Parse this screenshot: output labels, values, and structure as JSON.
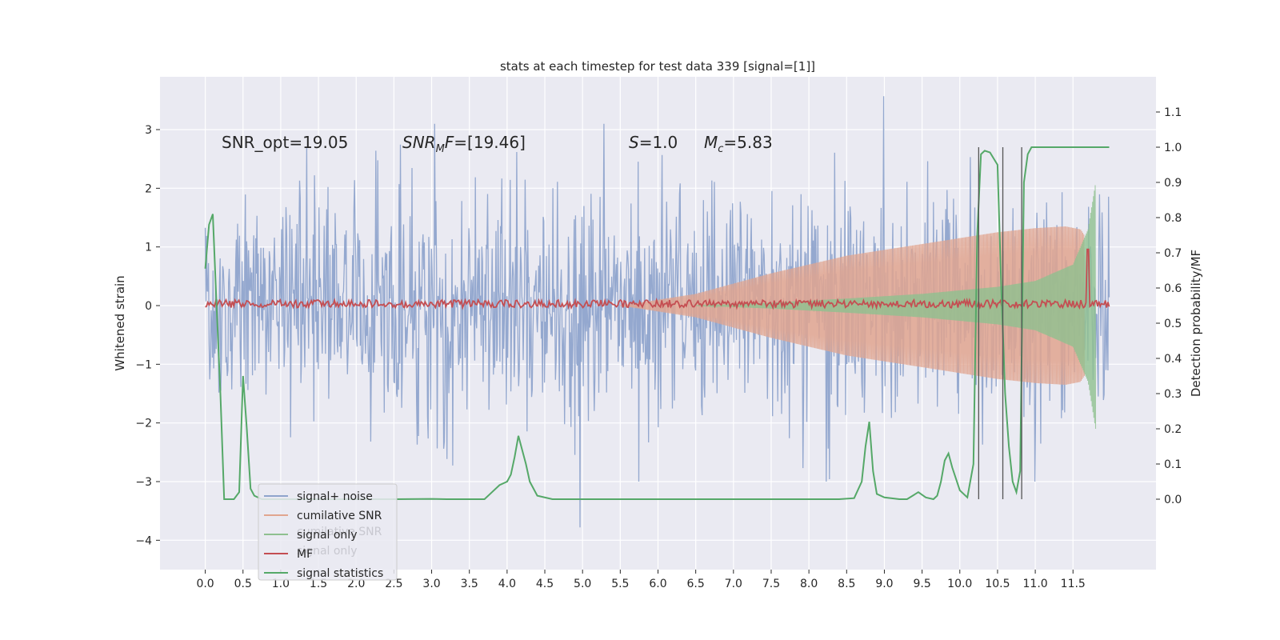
{
  "chart_data": {
    "type": "line",
    "title": "stats at each timestep for test data 339 [signal=[1]]",
    "xlabel": "",
    "ylabel_left": "Whitened strain",
    "ylabel_right": "Detection probability/MF",
    "xlim": [
      -0.6,
      12.6
    ],
    "ylim_left": [
      -4.5,
      3.9
    ],
    "ylim_right": [
      -0.2,
      1.2
    ],
    "x_ticks": [
      "0.0",
      "0.5",
      "1.0",
      "1.5",
      "2.0",
      "2.5",
      "3.0",
      "3.5",
      "4.0",
      "4.5",
      "5.0",
      "5.5",
      "6.0",
      "6.5",
      "7.0",
      "7.5",
      "8.0",
      "8.5",
      "9.0",
      "9.5",
      "10.0",
      "10.5",
      "11.0",
      "11.5"
    ],
    "x_tick_values": [
      0,
      0.5,
      1,
      1.5,
      2,
      2.5,
      3,
      3.5,
      4,
      4.5,
      5,
      5.5,
      6,
      6.5,
      7,
      7.5,
      8,
      8.5,
      9,
      9.5,
      10,
      10.5,
      11,
      11.5
    ],
    "y_left_ticks": [
      "3",
      "2",
      "1",
      "0",
      "−1",
      "−2",
      "−3",
      "−4"
    ],
    "y_left_tick_values": [
      3,
      2,
      1,
      0,
      -1,
      -2,
      -3,
      -4
    ],
    "y_right_ticks": [
      "1.1",
      "1.0",
      "0.9",
      "0.8",
      "0.7",
      "0.6",
      "0.5",
      "0.4",
      "0.3",
      "0.2",
      "0.1",
      "0.0"
    ],
    "y_right_tick_values": [
      1.1,
      1.0,
      0.9,
      0.8,
      0.7,
      0.6,
      0.5,
      0.4,
      0.3,
      0.2,
      0.1,
      0.0
    ],
    "annotations": [
      {
        "id": "snr-opt",
        "text": "SNR_opt=19.05",
        "x": 0.2,
        "y": 2.8
      },
      {
        "id": "snr-mf",
        "text": "SNR_MF=[19.46]",
        "x": 2.6,
        "y": 2.8
      },
      {
        "id": "s-val",
        "text": "S=1.0",
        "x": 5.6,
        "y": 2.8
      },
      {
        "id": "mc-val",
        "text": "Mc=5.83",
        "x": 6.6,
        "y": 2.8
      }
    ],
    "detection_lines_x": [
      10.25,
      10.57,
      10.82
    ],
    "series": [
      {
        "name": "signal+ noise",
        "color": "#8fa4cc",
        "axis": "left",
        "envelope_peak": 3.57,
        "envelope_trough": -3.78,
        "band": [
          -1.5,
          1.5
        ]
      },
      {
        "name": "cumilative SNR",
        "color": "#e1a58f",
        "axis": "left",
        "envelope": {
          "x": [
            5.5,
            6.5,
            7.5,
            8.5,
            9.5,
            10.5,
            11.0,
            11.4,
            11.6,
            11.65
          ],
          "half_width": [
            0.0,
            0.2,
            0.55,
            0.85,
            1.05,
            1.25,
            1.32,
            1.35,
            1.3,
            1.2
          ]
        }
      },
      {
        "name": "signal only",
        "color": "#8fc08f",
        "axis": "left",
        "envelope": {
          "x": [
            6.5,
            7.5,
            8.5,
            9.5,
            10.5,
            11.0,
            11.5,
            11.7,
            11.8
          ],
          "half_width": [
            0.0,
            0.05,
            0.12,
            0.2,
            0.32,
            0.42,
            0.7,
            1.3,
            2.1
          ]
        }
      },
      {
        "name": "MF",
        "color": "#c44e52",
        "axis": "right",
        "baseline": 0.555,
        "spike_x": 11.7,
        "spike_value": 0.71
      },
      {
        "name": "signal statistics",
        "color": "#55a868",
        "axis": "right",
        "x": [
          0.0,
          0.05,
          0.1,
          0.15,
          0.2,
          0.25,
          0.3,
          0.38,
          0.45,
          0.5,
          0.55,
          0.6,
          0.65,
          0.75,
          0.9,
          1.2,
          1.6,
          2.0,
          2.5,
          3.0,
          3.2,
          3.5,
          3.7,
          3.8,
          3.9,
          4.0,
          4.05,
          4.1,
          4.15,
          4.2,
          4.25,
          4.3,
          4.4,
          4.6,
          5.0,
          5.5,
          6.0,
          6.5,
          7.0,
          7.5,
          8.0,
          8.4,
          8.6,
          8.7,
          8.75,
          8.8,
          8.85,
          8.9,
          9.0,
          9.2,
          9.3,
          9.45,
          9.55,
          9.65,
          9.7,
          9.75,
          9.8,
          9.85,
          9.9,
          10.0,
          10.1,
          10.18,
          10.23,
          10.28,
          10.33,
          10.4,
          10.5,
          10.55,
          10.6,
          10.65,
          10.7,
          10.75,
          10.8,
          10.85,
          10.9,
          10.95,
          11.0,
          11.2,
          11.5,
          11.75,
          11.98
        ],
        "values": [
          0.655,
          0.78,
          0.81,
          0.55,
          0.3,
          0.0,
          0.0,
          0.0,
          0.02,
          0.35,
          0.2,
          0.03,
          0.01,
          0.0,
          0.0,
          0.0,
          0.0,
          0.0,
          0.0,
          0.001,
          0.0,
          0.0,
          0.0,
          0.02,
          0.04,
          0.05,
          0.07,
          0.12,
          0.18,
          0.14,
          0.1,
          0.05,
          0.01,
          0.0,
          0.0,
          0.0,
          0.0,
          0.0,
          0.0,
          0.0,
          0.0,
          0.0,
          0.003,
          0.05,
          0.15,
          0.22,
          0.08,
          0.015,
          0.005,
          0.0,
          0.0,
          0.02,
          0.005,
          0.0,
          0.01,
          0.05,
          0.11,
          0.13,
          0.09,
          0.025,
          0.005,
          0.1,
          0.75,
          0.98,
          0.99,
          0.985,
          0.95,
          0.6,
          0.3,
          0.15,
          0.05,
          0.02,
          0.08,
          0.9,
          0.98,
          1.0,
          1.0,
          1.0,
          1.0,
          1.0,
          1.0
        ]
      }
    ],
    "legend": {
      "placement": "lower-left",
      "entries": [
        "signal+ noise",
        "cumilative SNR",
        "signal only",
        "MF",
        "signal statistics"
      ],
      "ghost_entries": [
        "cumilative SNR",
        "signal only"
      ]
    }
  }
}
